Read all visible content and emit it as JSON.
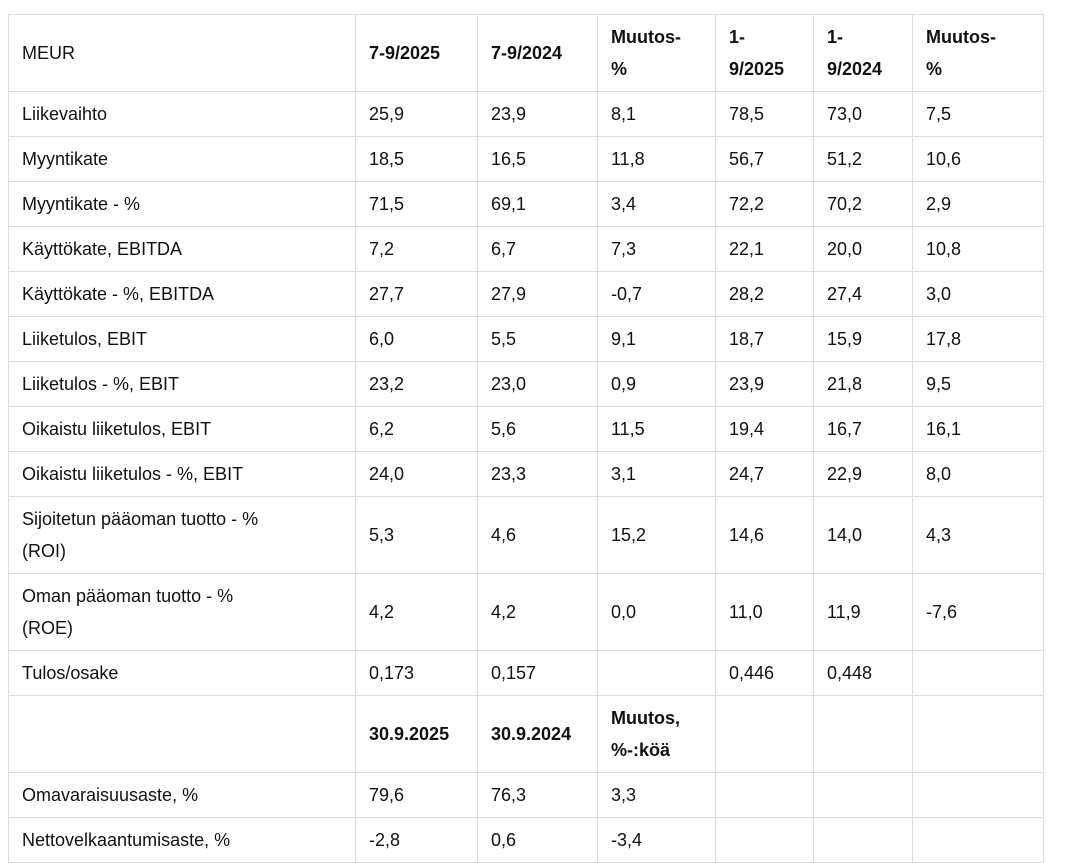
{
  "meta": {
    "text_color": "#111111",
    "border_color": "#dcdcdc",
    "background_color": "#ffffff"
  },
  "table": {
    "sections": [
      {
        "header": {
          "cells": [
            "MEUR",
            "7-9/2025",
            "7-9/2024",
            "Muutos-\n%",
            "1-\n9/2025",
            "1-\n9/2024",
            "Muutos-\n%"
          ],
          "bold_from": 1
        },
        "rows": [
          {
            "label": "Liikevaihto",
            "values": [
              "25,9",
              "23,9",
              "8,1",
              "78,5",
              "73,0",
              "7,5"
            ]
          },
          {
            "label": "Myyntikate",
            "values": [
              "18,5",
              "16,5",
              "11,8",
              "56,7",
              "51,2",
              "10,6"
            ]
          },
          {
            "label": "Myyntikate - %",
            "values": [
              "71,5",
              "69,1",
              "3,4",
              "72,2",
              "70,2",
              "2,9"
            ]
          },
          {
            "label": "Käyttökate, EBITDA",
            "values": [
              "7,2",
              "6,7",
              "7,3",
              "22,1",
              "20,0",
              "10,8"
            ]
          },
          {
            "label": "Käyttökate - %, EBITDA",
            "values": [
              "27,7",
              "27,9",
              "-0,7",
              "28,2",
              "27,4",
              "3,0"
            ]
          },
          {
            "label": "Liiketulos, EBIT",
            "values": [
              "6,0",
              "5,5",
              "9,1",
              "18,7",
              "15,9",
              "17,8"
            ]
          },
          {
            "label": "Liiketulos - %, EBIT",
            "values": [
              "23,2",
              "23,0",
              "0,9",
              "23,9",
              "21,8",
              "9,5"
            ]
          },
          {
            "label": "Oikaistu liiketulos, EBIT",
            "values": [
              "6,2",
              "5,6",
              "11,5",
              "19,4",
              "16,7",
              "16,1"
            ]
          },
          {
            "label": "Oikaistu liiketulos - %, EBIT",
            "values": [
              "24,0",
              "23,3",
              "3,1",
              "24,7",
              "22,9",
              "8,0"
            ]
          },
          {
            "label": "Sijoitetun pääoman tuotto - %\n(ROI)",
            "values": [
              "5,3",
              "4,6",
              "15,2",
              "14,6",
              "14,0",
              "4,3"
            ]
          },
          {
            "label": "Oman pääoman tuotto - %\n(ROE)",
            "values": [
              "4,2",
              "4,2",
              "0,0",
              "11,0",
              "11,9",
              "-7,6"
            ]
          },
          {
            "label": "Tulos/osake",
            "values": [
              "0,173",
              "0,157",
              "",
              "0,446",
              "0,448",
              ""
            ]
          }
        ]
      },
      {
        "header": {
          "cells": [
            "",
            "30.9.2025",
            "30.9.2024",
            "Muutos,\n%-:köä",
            "",
            "",
            ""
          ],
          "bold_from": 1
        },
        "rows": [
          {
            "label": "Omavaraisuusaste, %",
            "values": [
              "79,6",
              "76,3",
              "3,3",
              "",
              "",
              ""
            ]
          },
          {
            "label": "Nettovelkaantumisaste, %",
            "values": [
              "-2,8",
              "0,6",
              "-3,4",
              "",
              "",
              ""
            ]
          }
        ]
      }
    ]
  }
}
